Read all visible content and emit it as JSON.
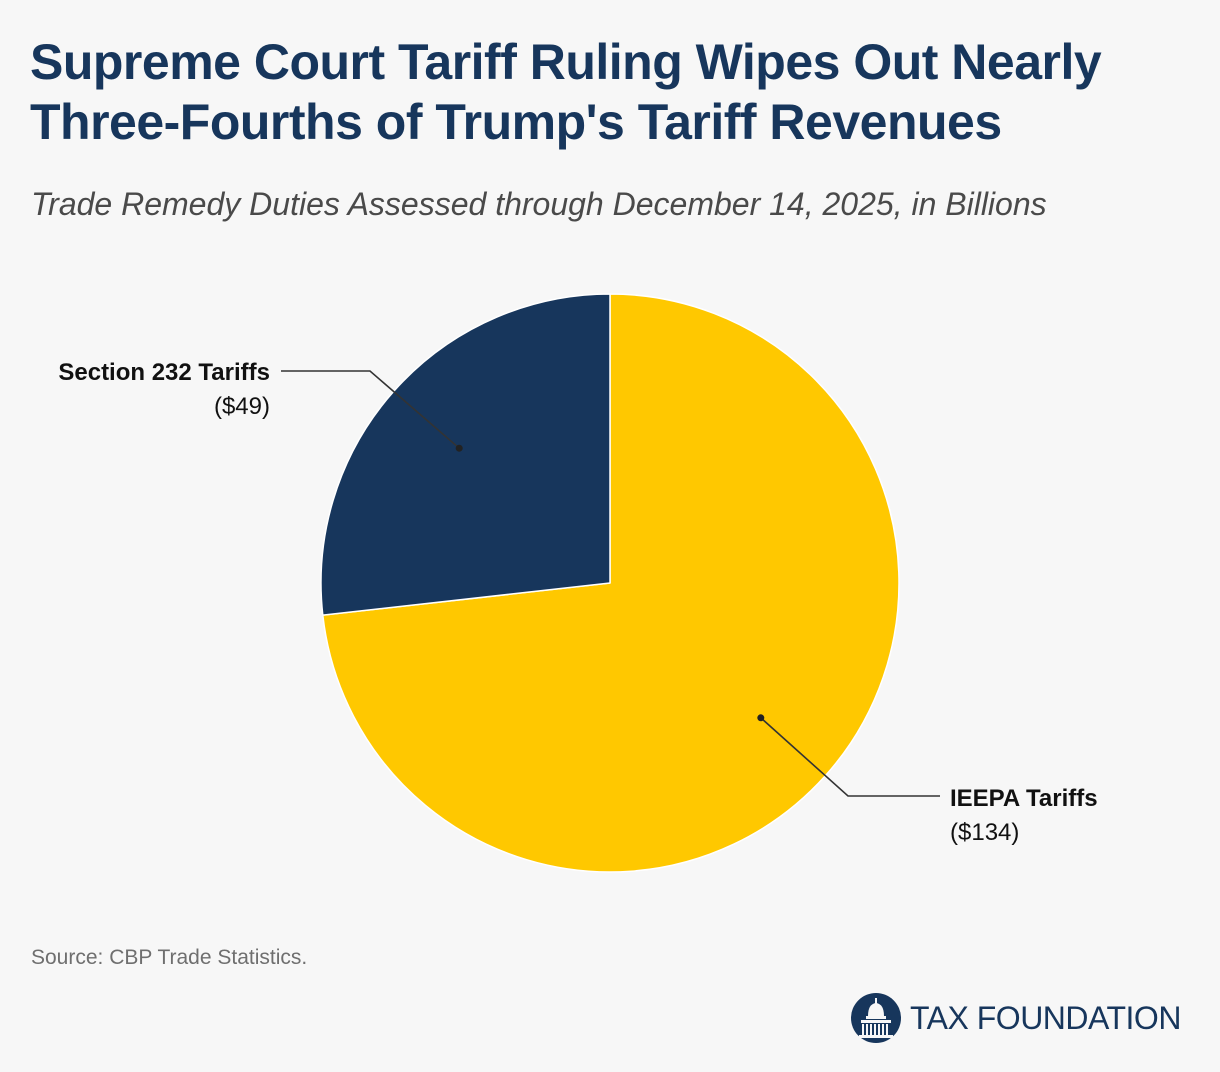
{
  "header": {
    "title_line1": "Supreme Court Tariff Ruling Wipes Out Nearly",
    "title_line2": "Three-Fourths of Trump's Tariff Revenues",
    "subtitle": "Trade Remedy Duties Assessed through December 14, 2025, in Billions"
  },
  "chart_data": {
    "type": "pie",
    "title": "Supreme Court Tariff Ruling Wipes Out Nearly Three-Fourths of Trump's Tariff Revenues",
    "subtitle": "Trade Remedy Duties Assessed through December 14, 2025, in Billions",
    "unit": "billions of dollars",
    "slices": [
      {
        "label": "IEEPA Tariffs",
        "value": 134,
        "value_label": "($134)",
        "color": "#ffc800"
      },
      {
        "label": "Section 232 Tariffs",
        "value": 49,
        "value_label": "($49)",
        "color": "#17365c"
      }
    ],
    "start": "12 o'clock",
    "direction": "clockwise"
  },
  "footer": {
    "source": "Source: CBP Trade Statistics.",
    "brand": "TAX FOUNDATION"
  },
  "colors": {
    "background": "#f7f7f7",
    "title": "#17365c",
    "subtitle": "#4a4a4a",
    "label_text": "#111111",
    "leader_line": "#333333",
    "source_text": "#6f6f6f"
  }
}
